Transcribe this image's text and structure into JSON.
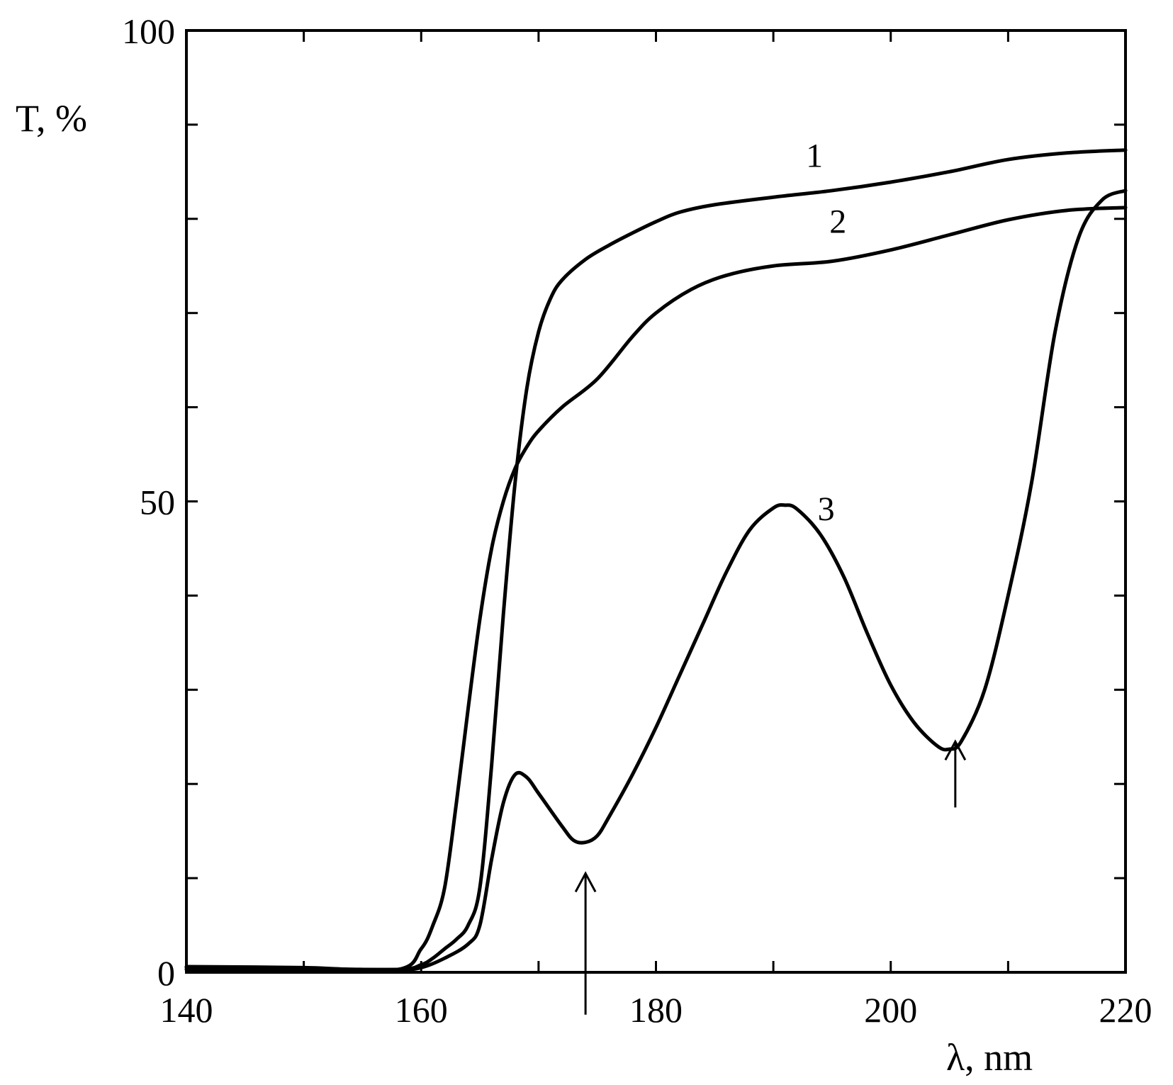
{
  "chart_data": {
    "type": "line",
    "xlabel": "λ, nm",
    "ylabel": "T, %",
    "xlim": [
      140,
      220
    ],
    "ylim": [
      0,
      100
    ],
    "x_ticks": [
      140,
      160,
      180,
      200,
      220
    ],
    "y_tick_labels": [
      {
        "value": 0,
        "label": "0"
      },
      {
        "value": 50,
        "label": "50"
      },
      {
        "value": 100,
        "label": "100"
      }
    ],
    "y_minor_ticks": [
      10,
      20,
      30,
      40,
      60,
      70,
      80,
      90
    ],
    "x_minor_ticks": [
      150,
      170,
      190,
      210
    ],
    "grid": false,
    "series": [
      {
        "name": "1",
        "label_at": [
          193.5,
          85.5
        ],
        "x": [
          140,
          150,
          158,
          160,
          161,
          162,
          163,
          164,
          165,
          166,
          167,
          168,
          169,
          170,
          171,
          172,
          174,
          176,
          178,
          180,
          182,
          185,
          190,
          195,
          200,
          205,
          210,
          215,
          220
        ],
        "y": [
          0.5,
          0.4,
          0.3,
          0.8,
          1.5,
          2.5,
          3.5,
          5.0,
          9.0,
          22.0,
          38.0,
          52.0,
          62.0,
          68.0,
          71.5,
          73.5,
          75.7,
          77.2,
          78.5,
          79.7,
          80.7,
          81.5,
          82.3,
          83.0,
          83.9,
          85.0,
          86.3,
          87.0,
          87.3
        ]
      },
      {
        "name": "2",
        "label_at": [
          195.5,
          78.5
        ],
        "x": [
          140,
          150,
          158,
          160,
          161,
          162,
          163,
          164,
          165,
          166,
          167,
          168,
          169,
          170,
          172,
          175,
          178,
          180,
          183,
          186,
          190,
          195,
          200,
          205,
          210,
          215,
          220
        ],
        "y": [
          0.6,
          0.5,
          0.3,
          2.5,
          5.0,
          9.0,
          18.0,
          28.0,
          37.5,
          45.0,
          50.0,
          53.5,
          55.8,
          57.5,
          60.0,
          63.0,
          67.5,
          70.0,
          72.5,
          74.0,
          75.0,
          75.5,
          76.7,
          78.3,
          79.9,
          80.9,
          81.2
        ]
      },
      {
        "name": "3",
        "label_at": [
          194.5,
          48.0
        ],
        "x": [
          140,
          150,
          158,
          160,
          162,
          164,
          165,
          166,
          167,
          168,
          169,
          170,
          172,
          173,
          174,
          175,
          176,
          178,
          180,
          182,
          184,
          186,
          188,
          190,
          191,
          192,
          194,
          196,
          198,
          200,
          202,
          204,
          205,
          206,
          208,
          210,
          212,
          214,
          216,
          218,
          220
        ],
        "y": [
          0.3,
          0.3,
          0.3,
          0.5,
          1.5,
          3.0,
          5.0,
          12.0,
          18.0,
          21.0,
          20.7,
          19.0,
          15.5,
          14.0,
          13.8,
          14.5,
          16.5,
          21.0,
          26.0,
          31.5,
          37.0,
          42.5,
          47.0,
          49.3,
          49.6,
          49.2,
          46.5,
          42.0,
          36.0,
          30.5,
          26.5,
          24.0,
          23.7,
          24.5,
          30.0,
          40.0,
          52.0,
          68.0,
          78.0,
          82.0,
          83.0
        ]
      }
    ],
    "annotations": [
      {
        "type": "arrow-up",
        "x": 174,
        "y_from": -4.5,
        "y_to": 10.5
      },
      {
        "type": "arrow-up",
        "x": 205.5,
        "y_from": 17.5,
        "y_to": 24.5
      }
    ]
  }
}
